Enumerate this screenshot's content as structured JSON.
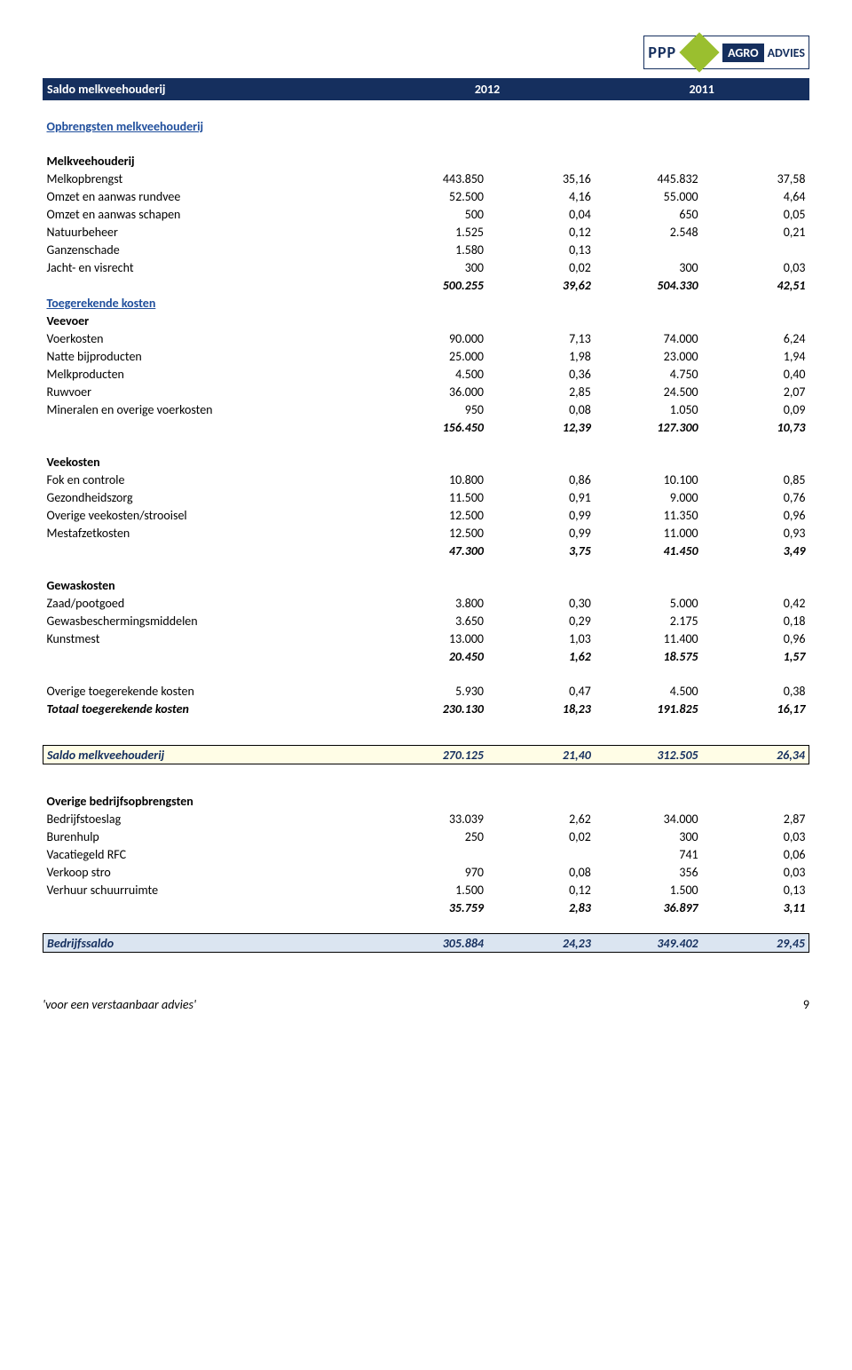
{
  "header": {
    "title": "Saldo melkveehouderij",
    "year1": "2012",
    "year2": "2011"
  },
  "logo": {
    "ppp": "PPP",
    "agro": "AGRO",
    "advies": "ADVIES"
  },
  "sections": {
    "opbrengsten": "Opbrengsten melkveehouderij",
    "melkveehouderij": "Melkveehouderij",
    "toegerekende": "Toegerekende kosten",
    "veevoer": "Veevoer",
    "veekosten": "Veekosten",
    "gewaskosten": "Gewaskosten",
    "overige_bedrijf": "Overige bedrijfsopbrengsten"
  },
  "rows": {
    "melkopbrengst": {
      "l": "Melkopbrengst",
      "a": "443.850",
      "b": "35,16",
      "c": "445.832",
      "d": "37,58"
    },
    "omzet_rundvee": {
      "l": "Omzet en aanwas rundvee",
      "a": "52.500",
      "b": "4,16",
      "c": "55.000",
      "d": "4,64"
    },
    "omzet_schapen": {
      "l": "Omzet en aanwas schapen",
      "a": "500",
      "b": "0,04",
      "c": "650",
      "d": "0,05"
    },
    "natuurbeheer": {
      "l": "Natuurbeheer",
      "a": "1.525",
      "b": "0,12",
      "c": "2.548",
      "d": "0,21"
    },
    "ganzenschade": {
      "l": "Ganzenschade",
      "a": "1.580",
      "b": "0,13",
      "c": "",
      "d": ""
    },
    "jacht": {
      "l": "Jacht- en visrecht",
      "a": "300",
      "b": "0,02",
      "c": "300",
      "d": "0,03"
    },
    "sub_opbr": {
      "a": "500.255",
      "b": "39,62",
      "c": "504.330",
      "d": "42,51"
    },
    "voerkosten": {
      "l": "Voerkosten",
      "a": "90.000",
      "b": "7,13",
      "c": "74.000",
      "d": "6,24"
    },
    "natte": {
      "l": "Natte bijproducten",
      "a": "25.000",
      "b": "1,98",
      "c": "23.000",
      "d": "1,94"
    },
    "melkproducten": {
      "l": "Melkproducten",
      "a": "4.500",
      "b": "0,36",
      "c": "4.750",
      "d": "0,40"
    },
    "ruwvoer": {
      "l": "Ruwvoer",
      "a": "36.000",
      "b": "2,85",
      "c": "24.500",
      "d": "2,07"
    },
    "mineralen": {
      "l": "Mineralen en overige voerkosten",
      "a": "950",
      "b": "0,08",
      "c": "1.050",
      "d": "0,09"
    },
    "sub_voer": {
      "a": "156.450",
      "b": "12,39",
      "c": "127.300",
      "d": "10,73"
    },
    "fok": {
      "l": "Fok en controle",
      "a": "10.800",
      "b": "0,86",
      "c": "10.100",
      "d": "0,85"
    },
    "gezondheid": {
      "l": "Gezondheidszorg",
      "a": "11.500",
      "b": "0,91",
      "c": "9.000",
      "d": "0,76"
    },
    "strooisel": {
      "l": "Overige veekosten/strooisel",
      "a": "12.500",
      "b": "0,99",
      "c": "11.350",
      "d": "0,96"
    },
    "mestafzet": {
      "l": "Mestafzetkosten",
      "a": "12.500",
      "b": "0,99",
      "c": "11.000",
      "d": "0,93"
    },
    "sub_vee": {
      "a": "47.300",
      "b": "3,75",
      "c": "41.450",
      "d": "3,49"
    },
    "zaad": {
      "l": "Zaad/pootgoed",
      "a": "3.800",
      "b": "0,30",
      "c": "5.000",
      "d": "0,42"
    },
    "gewasbesch": {
      "l": "Gewasbeschermingsmiddelen",
      "a": "3.650",
      "b": "0,29",
      "c": "2.175",
      "d": "0,18"
    },
    "kunstmest": {
      "l": "Kunstmest",
      "a": "13.000",
      "b": "1,03",
      "c": "11.400",
      "d": "0,96"
    },
    "sub_gewas": {
      "a": "20.450",
      "b": "1,62",
      "c": "18.575",
      "d": "1,57"
    },
    "overige_toeger": {
      "l": "Overige toegerekende kosten",
      "a": "5.930",
      "b": "0,47",
      "c": "4.500",
      "d": "0,38"
    },
    "totaal_toeger": {
      "l": "Totaal toegerekende kosten",
      "a": "230.130",
      "b": "18,23",
      "c": "191.825",
      "d": "16,17"
    },
    "saldo_melk": {
      "l": "Saldo melkveehouderij",
      "a": "270.125",
      "b": "21,40",
      "c": "312.505",
      "d": "26,34"
    },
    "bedrijfstoeslag": {
      "l": "Bedrijfstoeslag",
      "a": "33.039",
      "b": "2,62",
      "c": "34.000",
      "d": "2,87"
    },
    "burenhulp": {
      "l": "Burenhulp",
      "a": "250",
      "b": "0,02",
      "c": "300",
      "d": "0,03"
    },
    "vacatiegeld": {
      "l": "Vacatiegeld RFC",
      "a": "",
      "b": "",
      "c": "741",
      "d": "0,06"
    },
    "verkoop_stro": {
      "l": "Verkoop stro",
      "a": "970",
      "b": "0,08",
      "c": "356",
      "d": "0,03"
    },
    "verhuur": {
      "l": "Verhuur schuurruimte",
      "a": "1.500",
      "b": "0,12",
      "c": "1.500",
      "d": "0,13"
    },
    "sub_bedrijf": {
      "a": "35.759",
      "b": "2,83",
      "c": "36.897",
      "d": "3,11"
    },
    "bedrijfssaldo": {
      "l": "Bedrijfssaldo",
      "a": "305.884",
      "b": "24,23",
      "c": "349.402",
      "d": "29,45"
    }
  },
  "footer": {
    "tagline": "'voor een verstaanbaar advies'",
    "page": "9"
  }
}
